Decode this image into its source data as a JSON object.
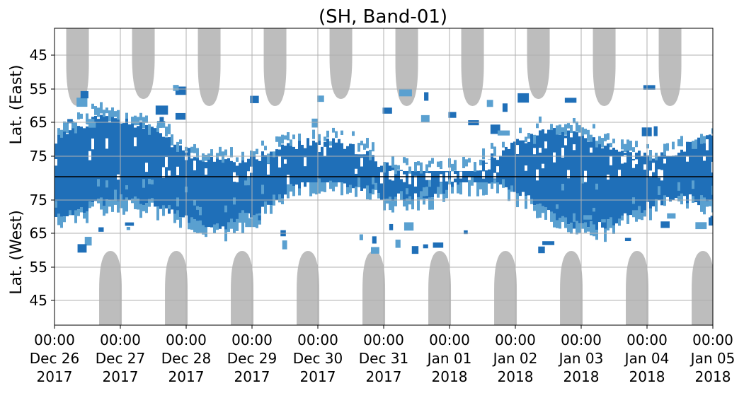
{
  "chart_data": {
    "type": "heatmap",
    "title": "(SH, Band-01)",
    "xlabel": "",
    "ylabel_top": "Lat. (East)",
    "ylabel_bottom": "Lat. (West)",
    "x_tick_labels": [
      [
        "00:00",
        "Dec 26",
        "2017"
      ],
      [
        "00:00",
        "Dec 27",
        "2017"
      ],
      [
        "00:00",
        "Dec 28",
        "2017"
      ],
      [
        "00:00",
        "Dec 29",
        "2017"
      ],
      [
        "00:00",
        "Dec 30",
        "2017"
      ],
      [
        "00:00",
        "Dec 31",
        "2017"
      ],
      [
        "00:00",
        "Jan 01",
        "2018"
      ],
      [
        "00:00",
        "Jan 02",
        "2018"
      ],
      [
        "00:00",
        "Jan 03",
        "2018"
      ],
      [
        "00:00",
        "Jan 04",
        "2018"
      ],
      [
        "00:00",
        "Jan 05",
        "2018"
      ]
    ],
    "y_tick_labels_top": [
      "45",
      "55",
      "65",
      "75"
    ],
    "y_tick_labels_bottom": [
      "75",
      "65",
      "55",
      "45"
    ],
    "grid": true,
    "colors": {
      "high": "#1f6fb8",
      "low": "#5aa0d0",
      "no_data": "#bdbdbd",
      "grid": "#b0b0b0",
      "center_line": "#000000"
    },
    "gray_lobes_top": [
      0.35,
      1.35,
      2.35,
      3.35,
      4.35,
      5.35,
      6.35,
      7.35,
      8.35,
      9.35
    ],
    "gray_lobes_bottom": [
      0.85,
      1.85,
      2.85,
      3.85,
      4.85,
      5.85,
      6.85,
      7.85,
      8.85,
      9.85
    ]
  }
}
